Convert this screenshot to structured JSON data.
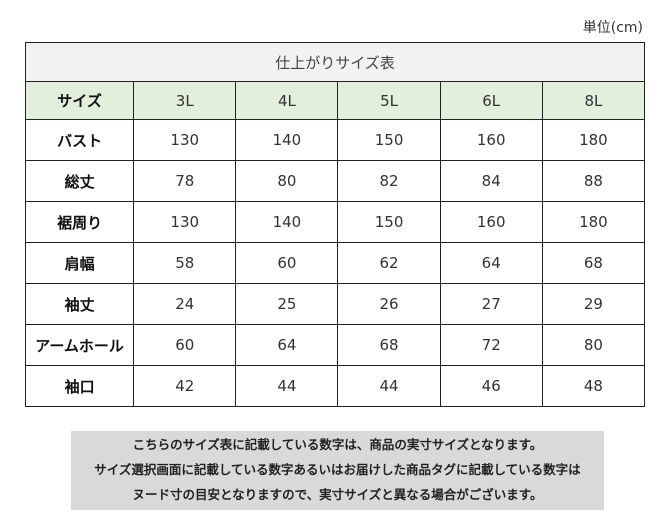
{
  "unit_label": "単位(cm)",
  "table": {
    "title": "仕上がりサイズ表",
    "header_label": "サイズ",
    "sizes": [
      "3L",
      "4L",
      "5L",
      "6L",
      "8L"
    ],
    "rows": [
      {
        "label": "バスト",
        "values": [
          "130",
          "140",
          "150",
          "160",
          "180"
        ]
      },
      {
        "label": "総丈",
        "values": [
          "78",
          "80",
          "82",
          "84",
          "88"
        ]
      },
      {
        "label": "裾周り",
        "values": [
          "130",
          "140",
          "150",
          "160",
          "180"
        ]
      },
      {
        "label": "肩幅",
        "values": [
          "58",
          "60",
          "62",
          "64",
          "68"
        ]
      },
      {
        "label": "袖丈",
        "values": [
          "24",
          "25",
          "26",
          "27",
          "29"
        ]
      },
      {
        "label": "アームホール",
        "values": [
          "60",
          "64",
          "68",
          "72",
          "80"
        ]
      },
      {
        "label": "袖口",
        "values": [
          "42",
          "44",
          "44",
          "46",
          "48"
        ]
      }
    ]
  },
  "note": {
    "lines": [
      "こちらのサイズ表に記載している数字は、商品の実寸サイズとなります。",
      "サイズ選択画面に記載している数字あるいはお届けした商品タグに記載している数字は",
      "ヌード寸の目安となりますので、実寸サイズと異なる場合がございます。"
    ]
  },
  "colors": {
    "title_bg": "#f2f2f2",
    "header_bg": "#e2efda",
    "note_bg": "#d9d9d9",
    "border": "#222222"
  }
}
